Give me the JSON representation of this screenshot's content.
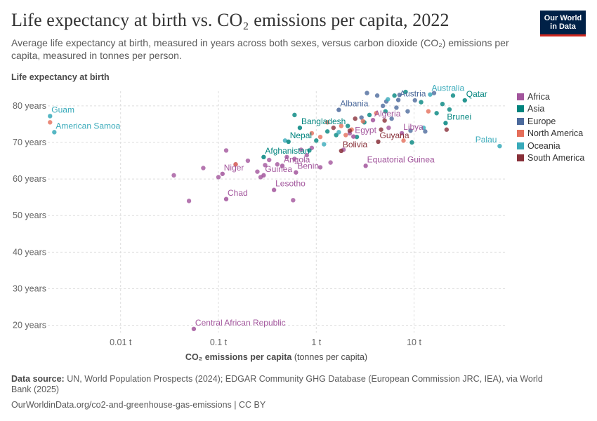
{
  "header": {
    "title": "Life expectancy at birth vs. CO₂ emissions per capita, 2022",
    "subtitle": "Average life expectancy at birth, measured in years across both sexes, versus carbon dioxide (CO₂) emissions per capita, measured in tonnes per person.",
    "logo_line1": "Our World",
    "logo_line2": "in Data"
  },
  "footer": {
    "source_label": "Data source:",
    "source_text": "UN, World Population Prospects (2024); EDGAR Community GHG Database (European Commission JRC, IEA), via World Bank (2025)",
    "url_text": "OurWorldinData.org/co2-and-greenhouse-gas-emissions | CC BY"
  },
  "colors": {
    "Africa": "#a2559c",
    "Asia": "#00847e",
    "Europe": "#4c6a9c",
    "North America": "#e56e5a",
    "Oceania": "#38aaba",
    "South America": "#883039"
  },
  "chart_data": {
    "type": "scatter",
    "title": "Life expectancy at birth vs. CO₂ emissions per capita, 2022",
    "ylabel": "Life expectancy at birth",
    "xlabel_bold": "CO₂ emissions per capita",
    "xlabel_unit": "(tonnes per capita)",
    "x_scale": "log",
    "xlim": [
      0.0018,
      85
    ],
    "ylim": [
      18,
      84
    ],
    "x_ticks": [
      {
        "value": 0.01,
        "label": "0.01 t"
      },
      {
        "value": 0.1,
        "label": "0.1 t"
      },
      {
        "value": 1,
        "label": "1 t"
      },
      {
        "value": 10,
        "label": "10 t"
      }
    ],
    "y_ticks": [
      {
        "value": 20,
        "label": "20 years"
      },
      {
        "value": 30,
        "label": "30 years"
      },
      {
        "value": 40,
        "label": "40 years"
      },
      {
        "value": 50,
        "label": "50 years"
      },
      {
        "value": 60,
        "label": "60 years"
      },
      {
        "value": 70,
        "label": "70 years"
      },
      {
        "value": 80,
        "label": "80 years"
      }
    ],
    "legend": [
      "Africa",
      "Asia",
      "Europe",
      "North America",
      "Oceania",
      "South America"
    ],
    "legend_position": "right",
    "labeled_points": [
      {
        "name": "Guam",
        "x": 0.0019,
        "y": 77.2,
        "region": "Oceania"
      },
      {
        "name": "American Samoa",
        "x": 0.0021,
        "y": 72.8,
        "region": "Oceania"
      },
      {
        "name": "Afghanistan",
        "x": 0.29,
        "y": 66.0,
        "region": "Asia"
      },
      {
        "name": "Nepal",
        "x": 0.52,
        "y": 70.2,
        "region": "Asia"
      },
      {
        "name": "Bangladesh",
        "x": 0.68,
        "y": 74.0,
        "region": "Asia"
      },
      {
        "name": "Albania",
        "x": 1.7,
        "y": 78.9,
        "region": "Europe"
      },
      {
        "name": "Austria",
        "x": 6.9,
        "y": 81.6,
        "region": "Europe"
      },
      {
        "name": "Australia",
        "x": 14.6,
        "y": 83.1,
        "region": "Oceania"
      },
      {
        "name": "Qatar",
        "x": 33,
        "y": 81.5,
        "region": "Asia"
      },
      {
        "name": "Algeria",
        "x": 3.8,
        "y": 76.1,
        "region": "Africa"
      },
      {
        "name": "Libya",
        "x": 7.5,
        "y": 72.5,
        "region": "Africa"
      },
      {
        "name": "Brunei",
        "x": 21,
        "y": 75.3,
        "region": "Asia"
      },
      {
        "name": "Palau",
        "x": 75,
        "y": 69.0,
        "region": "Oceania"
      },
      {
        "name": "Egypt",
        "x": 2.4,
        "y": 71.6,
        "region": "Africa"
      },
      {
        "name": "Guyana",
        "x": 4.3,
        "y": 70.2,
        "region": "South America"
      },
      {
        "name": "Bolivia",
        "x": 1.8,
        "y": 67.7,
        "region": "South America"
      },
      {
        "name": "Angola",
        "x": 0.45,
        "y": 63.6,
        "region": "Africa"
      },
      {
        "name": "Equatorial Guinea",
        "x": 3.2,
        "y": 63.6,
        "region": "Africa"
      },
      {
        "name": "Niger",
        "x": 0.11,
        "y": 61.4,
        "region": "Africa"
      },
      {
        "name": "Guinea",
        "x": 0.29,
        "y": 61.0,
        "region": "Africa"
      },
      {
        "name": "Benin",
        "x": 0.62,
        "y": 61.8,
        "region": "Africa"
      },
      {
        "name": "Lesotho",
        "x": 0.37,
        "y": 57.0,
        "region": "Africa"
      },
      {
        "name": "Chad",
        "x": 0.12,
        "y": 54.5,
        "region": "Africa"
      },
      {
        "name": "Central African Republic",
        "x": 0.056,
        "y": 19.0,
        "region": "Africa"
      }
    ],
    "other_points": [
      {
        "x": 0.05,
        "y": 54.0,
        "region": "Africa"
      },
      {
        "x": 0.035,
        "y": 61.0,
        "region": "Africa"
      },
      {
        "x": 0.07,
        "y": 63.0,
        "region": "Africa"
      },
      {
        "x": 0.1,
        "y": 60.5,
        "region": "Africa"
      },
      {
        "x": 0.12,
        "y": 67.8,
        "region": "Africa"
      },
      {
        "x": 0.15,
        "y": 64.0,
        "region": "Africa"
      },
      {
        "x": 0.2,
        "y": 65.0,
        "region": "Africa"
      },
      {
        "x": 0.25,
        "y": 62.0,
        "region": "Africa"
      },
      {
        "x": 0.27,
        "y": 60.5,
        "region": "Africa"
      },
      {
        "x": 0.3,
        "y": 63.8,
        "region": "Africa"
      },
      {
        "x": 0.33,
        "y": 65.2,
        "region": "Africa"
      },
      {
        "x": 0.4,
        "y": 64.0,
        "region": "Africa"
      },
      {
        "x": 0.5,
        "y": 66.0,
        "region": "Africa"
      },
      {
        "x": 0.58,
        "y": 54.2,
        "region": "Africa"
      },
      {
        "x": 0.6,
        "y": 65.5,
        "region": "Africa"
      },
      {
        "x": 0.7,
        "y": 68.0,
        "region": "Africa"
      },
      {
        "x": 0.8,
        "y": 66.5,
        "region": "Africa"
      },
      {
        "x": 0.9,
        "y": 68.5,
        "region": "Africa"
      },
      {
        "x": 1.1,
        "y": 63.2,
        "region": "Africa"
      },
      {
        "x": 1.4,
        "y": 64.5,
        "region": "Africa"
      },
      {
        "x": 1.9,
        "y": 68.0,
        "region": "Africa"
      },
      {
        "x": 2.2,
        "y": 72.5,
        "region": "Africa"
      },
      {
        "x": 5.5,
        "y": 74.0,
        "region": "Africa"
      },
      {
        "x": 0.6,
        "y": 77.5,
        "region": "Asia"
      },
      {
        "x": 0.85,
        "y": 67.8,
        "region": "Asia"
      },
      {
        "x": 1.0,
        "y": 70.5,
        "region": "Asia"
      },
      {
        "x": 1.3,
        "y": 73.0,
        "region": "Asia"
      },
      {
        "x": 1.6,
        "y": 72.0,
        "region": "Asia"
      },
      {
        "x": 2.1,
        "y": 74.5,
        "region": "Asia"
      },
      {
        "x": 2.6,
        "y": 71.5,
        "region": "Asia"
      },
      {
        "x": 3.1,
        "y": 75.5,
        "region": "Asia"
      },
      {
        "x": 3.5,
        "y": 77.5,
        "region": "Asia"
      },
      {
        "x": 5.1,
        "y": 78.5,
        "region": "Asia"
      },
      {
        "x": 6.3,
        "y": 82.8,
        "region": "Asia"
      },
      {
        "x": 8.2,
        "y": 83.8,
        "region": "Asia"
      },
      {
        "x": 9.5,
        "y": 70.0,
        "region": "Asia"
      },
      {
        "x": 11.8,
        "y": 81.0,
        "region": "Asia"
      },
      {
        "x": 17.0,
        "y": 78.0,
        "region": "Asia"
      },
      {
        "x": 19.5,
        "y": 80.5,
        "region": "Asia"
      },
      {
        "x": 23.0,
        "y": 79.0,
        "region": "Asia"
      },
      {
        "x": 25.0,
        "y": 82.8,
        "region": "Asia"
      },
      {
        "x": 4.8,
        "y": 80.0,
        "region": "Europe"
      },
      {
        "x": 3.3,
        "y": 83.5,
        "region": "Europe"
      },
      {
        "x": 4.2,
        "y": 82.8,
        "region": "Europe"
      },
      {
        "x": 5.2,
        "y": 81.2,
        "region": "Europe"
      },
      {
        "x": 5.9,
        "y": 76.5,
        "region": "Europe"
      },
      {
        "x": 6.6,
        "y": 79.5,
        "region": "Europe"
      },
      {
        "x": 7.1,
        "y": 83.0,
        "region": "Europe"
      },
      {
        "x": 8.6,
        "y": 78.5,
        "region": "Europe"
      },
      {
        "x": 9.2,
        "y": 73.2,
        "region": "Europe"
      },
      {
        "x": 10.2,
        "y": 81.5,
        "region": "Europe"
      },
      {
        "x": 13.0,
        "y": 73.0,
        "region": "Europe"
      },
      {
        "x": 16.0,
        "y": 83.5,
        "region": "Europe"
      },
      {
        "x": 2.9,
        "y": 76.8,
        "region": "Europe"
      },
      {
        "x": 0.15,
        "y": 64.0,
        "region": "North America"
      },
      {
        "x": 0.9,
        "y": 72.5,
        "region": "North America"
      },
      {
        "x": 1.1,
        "y": 71.5,
        "region": "North America"
      },
      {
        "x": 1.3,
        "y": 75.5,
        "region": "North America"
      },
      {
        "x": 1.8,
        "y": 74.5,
        "region": "North America"
      },
      {
        "x": 2.0,
        "y": 72.0,
        "region": "North America"
      },
      {
        "x": 2.3,
        "y": 73.5,
        "region": "North America"
      },
      {
        "x": 3.0,
        "y": 75.8,
        "region": "North America"
      },
      {
        "x": 4.1,
        "y": 78.0,
        "region": "North America"
      },
      {
        "x": 14.0,
        "y": 78.5,
        "region": "North America"
      },
      {
        "x": 7.8,
        "y": 70.5,
        "region": "North America"
      },
      {
        "x": 0.0019,
        "y": 75.5,
        "region": "North America"
      },
      {
        "x": 0.48,
        "y": 70.5,
        "region": "Oceania"
      },
      {
        "x": 1.2,
        "y": 69.5,
        "region": "Oceania"
      },
      {
        "x": 1.7,
        "y": 72.8,
        "region": "Oceania"
      },
      {
        "x": 12.5,
        "y": 74.0,
        "region": "Oceania"
      },
      {
        "x": 5.4,
        "y": 81.8,
        "region": "Oceania"
      },
      {
        "x": 1.5,
        "y": 74.0,
        "region": "South America"
      },
      {
        "x": 2.2,
        "y": 73.2,
        "region": "South America"
      },
      {
        "x": 2.5,
        "y": 76.5,
        "region": "South America"
      },
      {
        "x": 4.6,
        "y": 73.5,
        "region": "South America"
      },
      {
        "x": 5.0,
        "y": 76.0,
        "region": "South America"
      },
      {
        "x": 21.5,
        "y": 73.5,
        "region": "South America"
      }
    ]
  }
}
